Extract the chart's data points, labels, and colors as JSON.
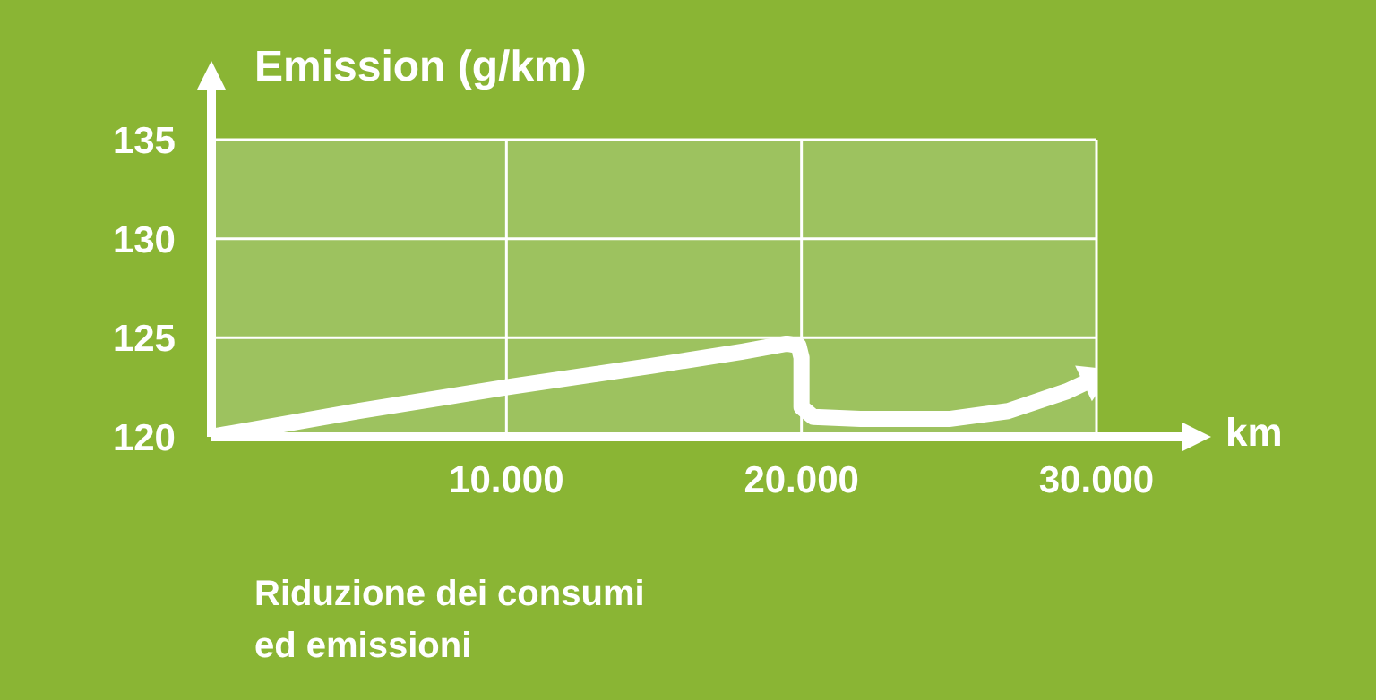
{
  "chart_data": {
    "type": "line",
    "xlabel": "km",
    "ylabel": "Emission (g/km)",
    "annotations": [
      "Riduzione dei consumi\ned emissioni"
    ],
    "series": [
      {
        "color": "#ffffff",
        "x": [
          0,
          5000,
          10000,
          15000,
          18000,
          19500,
          19900,
          20000,
          20000,
          20400,
          22000,
          25000,
          27000,
          29000,
          30000
        ],
        "values": [
          120,
          121.3,
          122.5,
          123.6,
          124.3,
          124.7,
          124.6,
          124,
          121.5,
          121,
          120.9,
          120.9,
          121.3,
          122.3,
          123
        ]
      }
    ],
    "xlim": [
      0,
      30000
    ],
    "ylim": [
      120,
      135
    ],
    "xticks": [
      {
        "value": 10000,
        "label": "10.000"
      },
      {
        "value": 20000,
        "label": "20.000"
      },
      {
        "value": 30000,
        "label": "30.000"
      }
    ],
    "yticks": [
      120,
      125,
      130,
      135
    ],
    "grid": true,
    "line_style": "solid"
  }
}
